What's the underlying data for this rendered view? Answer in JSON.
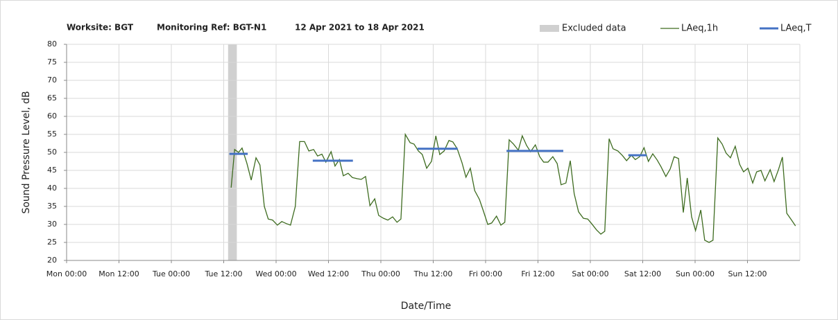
{
  "chart_data": {
    "type": "line",
    "title": [
      "Worksite: BGT",
      "Monitoring Ref: BGT-N1",
      "12 Apr 2021 to 18 Apr 2021"
    ],
    "xlabel": "Date/Time",
    "ylabel": "Sound Pressure Level, dB",
    "xlim": [
      0,
      168
    ],
    "ylim": [
      20,
      80
    ],
    "xticks": [
      {
        "value": 0,
        "label": "Mon 00:00"
      },
      {
        "value": 12,
        "label": "Mon 12:00"
      },
      {
        "value": 24,
        "label": "Tue 00:00"
      },
      {
        "value": 36,
        "label": "Tue 12:00"
      },
      {
        "value": 48,
        "label": "Wed 00:00"
      },
      {
        "value": 60,
        "label": "Wed 12:00"
      },
      {
        "value": 72,
        "label": "Thu 00:00"
      },
      {
        "value": 84,
        "label": "Thu 12:00"
      },
      {
        "value": 96,
        "label": "Fri 00:00"
      },
      {
        "value": 108,
        "label": "Fri 12:00"
      },
      {
        "value": 120,
        "label": "Sat 00:00"
      },
      {
        "value": 132,
        "label": "Sat 12:00"
      },
      {
        "value": 144,
        "label": "Sun 00:00"
      },
      {
        "value": 156,
        "label": "Sun 12:00"
      }
    ],
    "yticks": [
      20,
      25,
      30,
      35,
      40,
      45,
      50,
      55,
      60,
      65,
      70,
      75,
      80
    ],
    "grid": true,
    "excluded": {
      "name": "Excluded data",
      "color": "#d0d0d0",
      "x": [
        37,
        39
      ]
    },
    "series": [
      {
        "name": "LAeq,1h",
        "color": "#3d6b1f",
        "x": [
          37.7,
          38.5,
          39.4,
          40.2,
          41.3,
          42.3,
          43.4,
          44.3,
          45.3,
          46.2,
          47.2,
          48.3,
          49.3,
          50.4,
          51.3,
          52.4,
          53.4,
          54.5,
          55.5,
          56.6,
          57.5,
          58.5,
          59.4,
          60.6,
          61.5,
          62.5,
          63.4,
          64.5,
          65.5,
          66.6,
          67.5,
          68.5,
          69.5,
          70.6,
          71.5,
          72.6,
          73.6,
          74.7,
          75.7,
          76.6,
          77.6,
          78.7,
          79.6,
          80.6,
          81.5,
          82.5,
          83.6,
          84.6,
          85.5,
          86.5,
          87.6,
          88.5,
          89.5,
          90.6,
          91.5,
          92.5,
          93.5,
          94.6,
          95.5,
          96.5,
          97.4,
          98.5,
          99.5,
          100.4,
          101.4,
          102.4,
          103.5,
          104.4,
          105.4,
          106.3,
          107.4,
          108.4,
          109.3,
          110.3,
          111.4,
          112.4,
          113.3,
          114.4,
          115.4,
          116.3,
          117.3,
          118.4,
          119.4,
          120.3,
          121.4,
          122.4,
          123.3,
          124.3,
          125.2,
          126.3,
          127.3,
          128.3,
          129.4,
          130.3,
          131.3,
          132.3,
          133.3,
          134.3,
          135.3,
          136.2,
          137.3,
          138.3,
          139.2,
          140.2,
          141.3,
          142.2,
          143.2,
          144.1,
          145.3,
          146.2,
          147.2,
          148.1,
          149.2,
          150.2,
          151.1,
          152.1,
          153.2,
          154.2,
          155.1,
          156.1,
          157.2,
          158.1,
          159.1,
          160.0,
          161.2,
          162.1,
          163.1,
          164.0,
          165.0,
          166.1,
          167.0
        ],
        "values": [
          40.2,
          50.8,
          50,
          51.2,
          47,
          42.3,
          48.5,
          46.5,
          35,
          31.5,
          31.2,
          29.8,
          30.8,
          30.2,
          29.8,
          35,
          53,
          53,
          50.4,
          50.8,
          49,
          49.5,
          47.3,
          50.2,
          46.2,
          48,
          43.5,
          44.2,
          43,
          42.7,
          42.5,
          43.3,
          35.2,
          37.1,
          32.5,
          31.7,
          31.2,
          32.1,
          30.6,
          31.5,
          55,
          52.7,
          52.3,
          50.4,
          49.4,
          45.6,
          47.5,
          54.6,
          49.4,
          50.4,
          53.3,
          52.9,
          51,
          47.1,
          43.1,
          45.6,
          39.4,
          36.9,
          33.7,
          30,
          30.4,
          32.3,
          29.8,
          30.6,
          53.5,
          52.3,
          50.6,
          54.6,
          51.9,
          50.2,
          52.1,
          48.8,
          47.3,
          47.3,
          48.8,
          46.9,
          41,
          41.5,
          47.7,
          38.5,
          33.5,
          31.7,
          31.5,
          30.2,
          28.5,
          27.3,
          28.1,
          53.8,
          51,
          50.4,
          49.2,
          47.7,
          49.2,
          48,
          48.8,
          51.3,
          47.5,
          49.6,
          47.9,
          46,
          43.3,
          45.4,
          48.8,
          48.3,
          33.3,
          42.9,
          32.1,
          28.3,
          34,
          25.6,
          25,
          25.6,
          54,
          52.3,
          49.8,
          48.5,
          51.7,
          46.7,
          44.6,
          45.6,
          41.5,
          44.6,
          45,
          42.1,
          45.2,
          41.9,
          45.2,
          48.7,
          33.1,
          31.2,
          29.6
        ]
      },
      {
        "name": "LAeq,T",
        "color": "#4472c4",
        "segments": [
          {
            "x": [
              37.3,
              41.5
            ],
            "value": 49.6
          },
          {
            "x": [
              56.4,
              65.6
            ],
            "value": 47.7
          },
          {
            "x": [
              80.4,
              89.6
            ],
            "value": 51
          },
          {
            "x": [
              100.8,
              113.8
            ],
            "value": 50.4
          },
          {
            "x": [
              128.7,
              132.9
            ],
            "value": 49.2
          }
        ]
      }
    ]
  }
}
